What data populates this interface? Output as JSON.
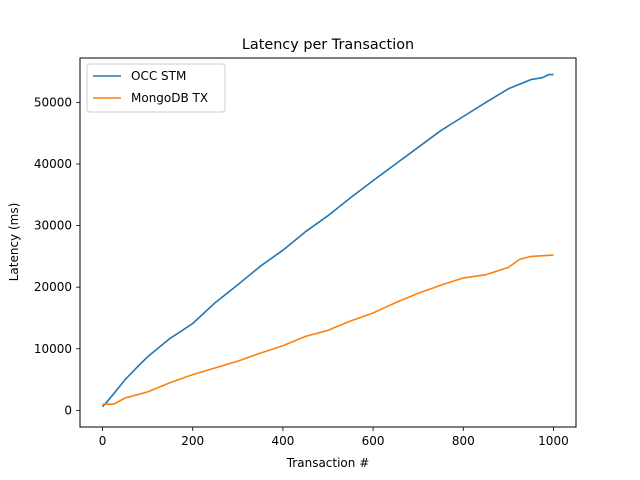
{
  "chart_data": {
    "type": "line",
    "title": "Latency per Transaction",
    "xlabel": "Transaction #",
    "ylabel": "Latency (ms)",
    "xlim": [
      -50,
      1050
    ],
    "ylim": [
      -2700,
      57200
    ],
    "xticks": [
      0,
      200,
      400,
      600,
      800,
      1000
    ],
    "yticks": [
      0,
      10000,
      20000,
      30000,
      40000,
      50000
    ],
    "grid": false,
    "legend": "upper left",
    "series": [
      {
        "name": "OCC STM",
        "color": "#1f77b4",
        "x": [
          0,
          10,
          25,
          50,
          75,
          100,
          125,
          150,
          175,
          200,
          250,
          300,
          350,
          400,
          450,
          500,
          550,
          600,
          650,
          700,
          750,
          800,
          850,
          900,
          950,
          975,
          990,
          1000
        ],
        "y": [
          600,
          1400,
          2700,
          5000,
          6900,
          8700,
          10200,
          11700,
          12900,
          14100,
          17500,
          20400,
          23400,
          26000,
          29000,
          31600,
          34500,
          37300,
          40000,
          42700,
          45400,
          47700,
          50000,
          52200,
          53700,
          54000,
          54500,
          54500
        ]
      },
      {
        "name": "MongoDB TX",
        "color": "#ff7f0e",
        "x": [
          0,
          25,
          50,
          100,
          150,
          200,
          250,
          300,
          350,
          400,
          450,
          500,
          550,
          600,
          650,
          700,
          750,
          800,
          850,
          900,
          925,
          950,
          1000
        ],
        "y": [
          1000,
          1000,
          2000,
          3000,
          4500,
          5800,
          6900,
          8000,
          9300,
          10500,
          12000,
          13000,
          14500,
          15800,
          17500,
          19000,
          20300,
          21500,
          22000,
          23200,
          24500,
          25000,
          25200
        ]
      }
    ]
  }
}
